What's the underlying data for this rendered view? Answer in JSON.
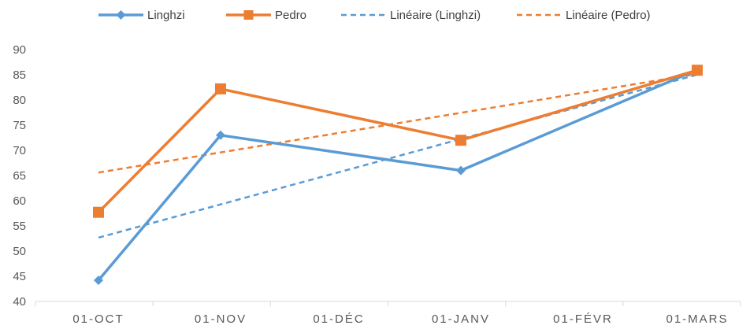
{
  "chart_data": {
    "type": "line",
    "categories": [
      "01-OCT",
      "01-NOV",
      "01-DÉC",
      "01-JANV",
      "01-FÉVR",
      "01-MARS"
    ],
    "x_dates": [
      "2023-10-01",
      "2023-11-01",
      "2023-12-01",
      "2024-01-01",
      "2024-02-01",
      "2024-03-01"
    ],
    "ylim": [
      40,
      90
    ],
    "yticks": [
      40,
      45,
      50,
      55,
      60,
      65,
      70,
      75,
      80,
      85,
      90
    ],
    "grid": false,
    "legend_position": "top",
    "series": [
      {
        "name": "Linghzi",
        "color": "#5B9BD5",
        "marker": "diamond",
        "x": [
          "2023-10-01",
          "2023-11-01",
          "2024-01-01",
          "2024-03-01"
        ],
        "values": [
          44.2,
          73,
          66,
          86
        ]
      },
      {
        "name": "Pedro",
        "color": "#ED7D31",
        "marker": "square",
        "x": [
          "2023-10-01",
          "2023-11-01",
          "2024-01-01",
          "2024-03-01"
        ],
        "values": [
          57.7,
          82.2,
          72,
          85.9
        ]
      },
      {
        "name": "Linéaire (Linghzi)",
        "color": "#5B9BD5",
        "dashed": true,
        "trendline_of": "Linghzi"
      },
      {
        "name": "Linéaire (Pedro)",
        "color": "#ED7D31",
        "dashed": true,
        "trendline_of": "Pedro"
      }
    ]
  }
}
